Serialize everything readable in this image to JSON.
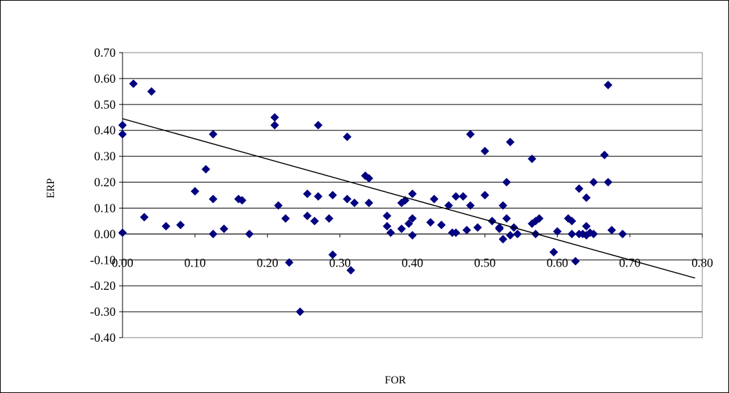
{
  "chart_data": {
    "type": "scatter",
    "title": "",
    "xlabel": "FOR",
    "ylabel": "ERP",
    "xlim": [
      0.0,
      0.8
    ],
    "ylim": [
      -0.4,
      0.7
    ],
    "x_ticks": [
      "0.00",
      "0.10",
      "0.20",
      "0.30",
      "0.40",
      "0.50",
      "0.60",
      "0.70",
      "0.80"
    ],
    "y_ticks": [
      "0.70",
      "0.60",
      "0.50",
      "0.40",
      "0.30",
      "0.20",
      "0.10",
      "0.00",
      "-0.10",
      "-0.20",
      "-0.30",
      "-0.40"
    ],
    "grid": "horizontal",
    "legend": "none",
    "marker": "diamond",
    "marker_color": "#000080",
    "trendline": {
      "x": [
        0.0,
        0.79
      ],
      "y": [
        0.445,
        -0.17
      ],
      "color": "#000000"
    },
    "series": [
      {
        "points": [
          [
            0.0,
            0.42
          ],
          [
            0.0,
            0.385
          ],
          [
            0.0,
            0.005
          ],
          [
            0.015,
            0.58
          ],
          [
            0.04,
            0.55
          ],
          [
            0.03,
            0.065
          ],
          [
            0.06,
            0.03
          ],
          [
            0.08,
            0.035
          ],
          [
            0.1,
            0.165
          ],
          [
            0.115,
            0.25
          ],
          [
            0.125,
            0.385
          ],
          [
            0.125,
            0.135
          ],
          [
            0.125,
            0.0
          ],
          [
            0.14,
            0.02
          ],
          [
            0.16,
            0.135
          ],
          [
            0.165,
            0.13
          ],
          [
            0.175,
            0.0
          ],
          [
            0.21,
            0.45
          ],
          [
            0.21,
            0.42
          ],
          [
            0.215,
            0.11
          ],
          [
            0.225,
            0.06
          ],
          [
            0.23,
            -0.11
          ],
          [
            0.245,
            -0.3
          ],
          [
            0.255,
            0.155
          ],
          [
            0.255,
            0.07
          ],
          [
            0.265,
            0.05
          ],
          [
            0.27,
            0.42
          ],
          [
            0.27,
            0.145
          ],
          [
            0.285,
            0.06
          ],
          [
            0.29,
            0.15
          ],
          [
            0.29,
            -0.08
          ],
          [
            0.31,
            0.375
          ],
          [
            0.31,
            0.135
          ],
          [
            0.315,
            -0.14
          ],
          [
            0.32,
            0.12
          ],
          [
            0.335,
            0.225
          ],
          [
            0.34,
            0.215
          ],
          [
            0.34,
            0.12
          ],
          [
            0.365,
            0.07
          ],
          [
            0.365,
            0.03
          ],
          [
            0.37,
            0.005
          ],
          [
            0.385,
            0.12
          ],
          [
            0.385,
            0.02
          ],
          [
            0.39,
            0.13
          ],
          [
            0.395,
            0.04
          ],
          [
            0.4,
            0.155
          ],
          [
            0.4,
            0.06
          ],
          [
            0.4,
            -0.005
          ],
          [
            0.425,
            0.045
          ],
          [
            0.43,
            0.135
          ],
          [
            0.44,
            0.035
          ],
          [
            0.45,
            0.11
          ],
          [
            0.455,
            0.005
          ],
          [
            0.46,
            0.145
          ],
          [
            0.46,
            0.005
          ],
          [
            0.47,
            0.145
          ],
          [
            0.475,
            0.015
          ],
          [
            0.48,
            0.385
          ],
          [
            0.48,
            0.11
          ],
          [
            0.49,
            0.025
          ],
          [
            0.5,
            0.32
          ],
          [
            0.5,
            0.15
          ],
          [
            0.51,
            0.05
          ],
          [
            0.52,
            0.025
          ],
          [
            0.52,
            0.02
          ],
          [
            0.525,
            -0.02
          ],
          [
            0.525,
            0.11
          ],
          [
            0.53,
            0.06
          ],
          [
            0.53,
            0.2
          ],
          [
            0.535,
            0.355
          ],
          [
            0.535,
            -0.005
          ],
          [
            0.54,
            0.025
          ],
          [
            0.545,
            0.0
          ],
          [
            0.565,
            0.29
          ],
          [
            0.565,
            0.04
          ],
          [
            0.57,
            0.05
          ],
          [
            0.57,
            0.0
          ],
          [
            0.575,
            0.06
          ],
          [
            0.595,
            -0.07
          ],
          [
            0.6,
            0.01
          ],
          [
            0.615,
            0.06
          ],
          [
            0.62,
            0.05
          ],
          [
            0.62,
            0.0
          ],
          [
            0.625,
            -0.105
          ],
          [
            0.63,
            0.0
          ],
          [
            0.63,
            0.175
          ],
          [
            0.635,
            0.0
          ],
          [
            0.64,
            0.14
          ],
          [
            0.64,
            0.03
          ],
          [
            0.64,
            -0.005
          ],
          [
            0.645,
            0.005
          ],
          [
            0.65,
            0.2
          ],
          [
            0.65,
            0.0
          ],
          [
            0.665,
            0.305
          ],
          [
            0.67,
            0.575
          ],
          [
            0.67,
            0.2
          ],
          [
            0.675,
            0.015
          ],
          [
            0.69,
            0.0
          ]
        ]
      }
    ]
  }
}
